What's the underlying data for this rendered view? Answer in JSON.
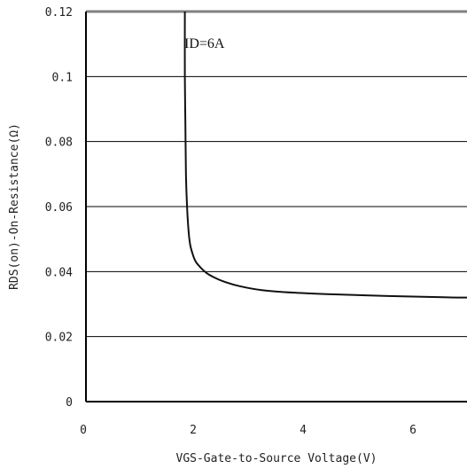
{
  "chart_data": {
    "type": "line",
    "title": "",
    "xlabel": "VGS-Gate-to-Source Voltage(V)",
    "ylabel": "RDS(on)-On-Resistance(Ω)",
    "xlim": [
      0,
      7
    ],
    "ylim": [
      0,
      0.12
    ],
    "x_ticks": [
      "0",
      "2",
      "4",
      "6"
    ],
    "y_ticks": [
      "0",
      "0.02",
      "0.04",
      "0.06",
      "0.08",
      "0.1",
      "0.12"
    ],
    "grid": "horizontal",
    "annotation": "ID=6A",
    "series": [
      {
        "x": [
          1.8,
          1.8,
          1.81,
          1.82,
          1.84,
          1.87,
          1.9,
          1.95,
          2.0,
          2.1,
          2.2,
          2.3,
          2.5,
          2.8,
          3.2,
          3.8,
          4.5,
          5.5,
          6.5,
          7.0
        ],
        "y": [
          0.12,
          0.1,
          0.085,
          0.07,
          0.06,
          0.052,
          0.048,
          0.045,
          0.043,
          0.041,
          0.0395,
          0.0385,
          0.037,
          0.0355,
          0.0343,
          0.0335,
          0.033,
          0.0325,
          0.0321,
          0.032
        ]
      }
    ],
    "line_color": "#111111",
    "grid_color": "#000000"
  }
}
